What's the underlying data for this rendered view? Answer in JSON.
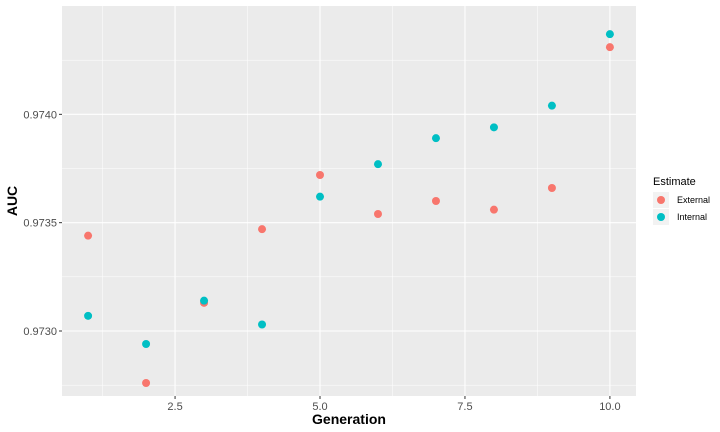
{
  "chart_data": {
    "type": "scatter",
    "title": "",
    "xlabel": "Generation",
    "ylabel": "AUC",
    "xlim": [
      0.55,
      10.45
    ],
    "ylim": [
      0.9727,
      0.9745
    ],
    "x_ticks": [
      2.5,
      5.0,
      7.5,
      10.0
    ],
    "x_tick_labels": [
      "2.5",
      "5.0",
      "7.5",
      "10.0"
    ],
    "y_ticks": [
      0.973,
      0.9735,
      0.974
    ],
    "y_tick_labels": [
      "0.9730",
      "0.9735",
      "0.9740"
    ],
    "grid": true,
    "legend": {
      "title": "Estimate",
      "position": "right"
    },
    "series": [
      {
        "name": "External",
        "color": "#F8766D",
        "points": [
          {
            "x": 1,
            "y": 0.97344
          },
          {
            "x": 2,
            "y": 0.97276
          },
          {
            "x": 3,
            "y": 0.97313
          },
          {
            "x": 4,
            "y": 0.97347
          },
          {
            "x": 5,
            "y": 0.97372
          },
          {
            "x": 6,
            "y": 0.97354
          },
          {
            "x": 7,
            "y": 0.9736
          },
          {
            "x": 8,
            "y": 0.97356
          },
          {
            "x": 9,
            "y": 0.97366
          },
          {
            "x": 10,
            "y": 0.97431
          }
        ]
      },
      {
        "name": "Internal",
        "color": "#00BFC4",
        "points": [
          {
            "x": 1,
            "y": 0.97307
          },
          {
            "x": 2,
            "y": 0.97294
          },
          {
            "x": 3,
            "y": 0.97314
          },
          {
            "x": 4,
            "y": 0.97303
          },
          {
            "x": 5,
            "y": 0.97362
          },
          {
            "x": 6,
            "y": 0.97377
          },
          {
            "x": 7,
            "y": 0.97389
          },
          {
            "x": 8,
            "y": 0.97394
          },
          {
            "x": 9,
            "y": 0.97404
          },
          {
            "x": 10,
            "y": 0.97437
          }
        ]
      }
    ]
  }
}
